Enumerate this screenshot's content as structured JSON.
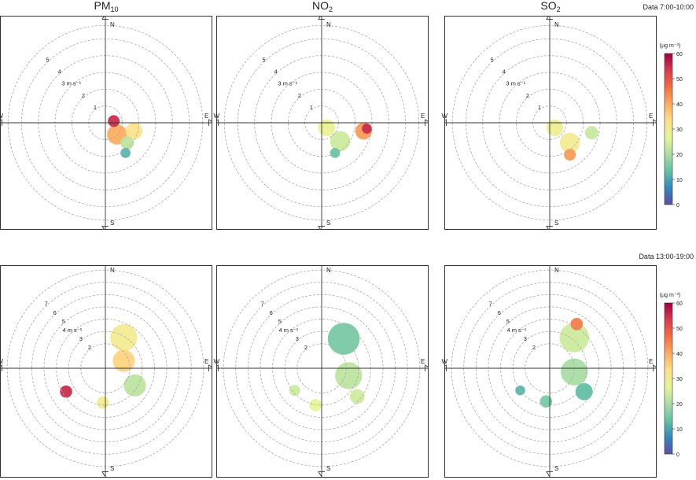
{
  "columns": [
    {
      "title": "PM",
      "sub": "10"
    },
    {
      "title": "NO",
      "sub": "2"
    },
    {
      "title": "SO",
      "sub": "2"
    }
  ],
  "compass": {
    "n": "N",
    "e": "E",
    "s": "S",
    "w": "W"
  },
  "colorbar": {
    "unit": "(µg m⁻³)",
    "ticks": [
      "0",
      "10",
      "20",
      "30",
      "40",
      "50",
      "60"
    ],
    "range": [
      0,
      60
    ],
    "colors": [
      "#5e4fa2",
      "#3288bd",
      "#66c2a5",
      "#abdda4",
      "#e6f598",
      "#fee08b",
      "#fdae61",
      "#f46d43",
      "#d53e4f",
      "#9e0142"
    ]
  },
  "chart_data": [
    {
      "type": "polar-plot",
      "period": "Data 7:00-10:00",
      "radius_max": 6,
      "speed_rings": [
        {
          "speed": 1,
          "label": "1"
        },
        {
          "speed": 2,
          "label": "2"
        },
        {
          "speed": 3,
          "label": "3 m s⁻¹"
        },
        {
          "speed": 4,
          "label": "4"
        },
        {
          "speed": 5,
          "label": "5"
        }
      ],
      "panels": [
        {
          "pollutant": "PM10",
          "blobs": [
            {
              "x": 0.7,
              "y": -0.7,
              "r": 0.6,
              "value": 40
            },
            {
              "x": 1.7,
              "y": -0.5,
              "r": 0.5,
              "value": 33
            },
            {
              "x": 1.3,
              "y": -1.2,
              "r": 0.4,
              "value": 22
            },
            {
              "x": 0.5,
              "y": 0.1,
              "r": 0.35,
              "value": 55
            },
            {
              "x": 1.2,
              "y": -1.8,
              "r": 0.3,
              "value": 12
            }
          ]
        },
        {
          "pollutant": "NO2",
          "blobs": [
            {
              "x": 0.3,
              "y": -0.3,
              "r": 0.5,
              "value": 28
            },
            {
              "x": 1.1,
              "y": -1.1,
              "r": 0.6,
              "value": 24
            },
            {
              "x": 2.5,
              "y": -0.5,
              "r": 0.5,
              "value": 42
            },
            {
              "x": 2.7,
              "y": -0.35,
              "r": 0.3,
              "value": 55
            },
            {
              "x": 0.8,
              "y": -1.8,
              "r": 0.3,
              "value": 14
            }
          ]
        },
        {
          "pollutant": "SO2",
          "blobs": [
            {
              "x": 0.3,
              "y": -0.3,
              "r": 0.5,
              "value": 29
            },
            {
              "x": 1.2,
              "y": -1.2,
              "r": 0.6,
              "value": 30
            },
            {
              "x": 1.2,
              "y": -1.9,
              "r": 0.35,
              "value": 42
            },
            {
              "x": 2.5,
              "y": -0.6,
              "r": 0.4,
              "value": 23
            }
          ]
        }
      ]
    },
    {
      "type": "polar-plot",
      "period": "Data 13:00-19:00",
      "radius_max": 8.2,
      "speed_rings": [
        {
          "speed": 2,
          "label": "2"
        },
        {
          "speed": 3,
          "label": "3"
        },
        {
          "speed": 4,
          "label": "4 m s⁻¹"
        },
        {
          "speed": 5,
          "label": "5"
        },
        {
          "speed": 6,
          "label": "6"
        },
        {
          "speed": 7,
          "label": "7"
        }
      ],
      "panels": [
        {
          "pollutant": "PM10",
          "blobs": [
            {
              "x": 1.5,
              "y": 2.5,
              "r": 1.1,
              "value": 30
            },
            {
              "x": 1.5,
              "y": 0.6,
              "r": 0.9,
              "value": 35
            },
            {
              "x": 2.4,
              "y": -1.4,
              "r": 0.9,
              "value": 22
            },
            {
              "x": -3.2,
              "y": -1.9,
              "r": 0.5,
              "value": 55
            },
            {
              "x": -0.2,
              "y": -2.8,
              "r": 0.5,
              "value": 30
            }
          ]
        },
        {
          "pollutant": "NO2",
          "blobs": [
            {
              "x": 1.8,
              "y": 2.4,
              "r": 1.3,
              "value": 15
            },
            {
              "x": 2.2,
              "y": -0.6,
              "r": 1.1,
              "value": 22
            },
            {
              "x": -2.2,
              "y": -1.8,
              "r": 0.45,
              "value": 24
            },
            {
              "x": -0.5,
              "y": -3.0,
              "r": 0.5,
              "value": 27
            },
            {
              "x": 2.9,
              "y": -2.3,
              "r": 0.6,
              "value": 24
            }
          ]
        },
        {
          "pollutant": "SO2",
          "blobs": [
            {
              "x": 2.0,
              "y": 2.5,
              "r": 1.2,
              "value": 24
            },
            {
              "x": 2.2,
              "y": 3.6,
              "r": 0.5,
              "value": 45
            },
            {
              "x": 2.0,
              "y": -0.3,
              "r": 1.1,
              "value": 20
            },
            {
              "x": -2.4,
              "y": -1.8,
              "r": 0.4,
              "value": 12
            },
            {
              "x": 2.8,
              "y": -1.9,
              "r": 0.7,
              "value": 13
            },
            {
              "x": -0.3,
              "y": -2.7,
              "r": 0.5,
              "value": 15
            }
          ]
        }
      ]
    }
  ]
}
